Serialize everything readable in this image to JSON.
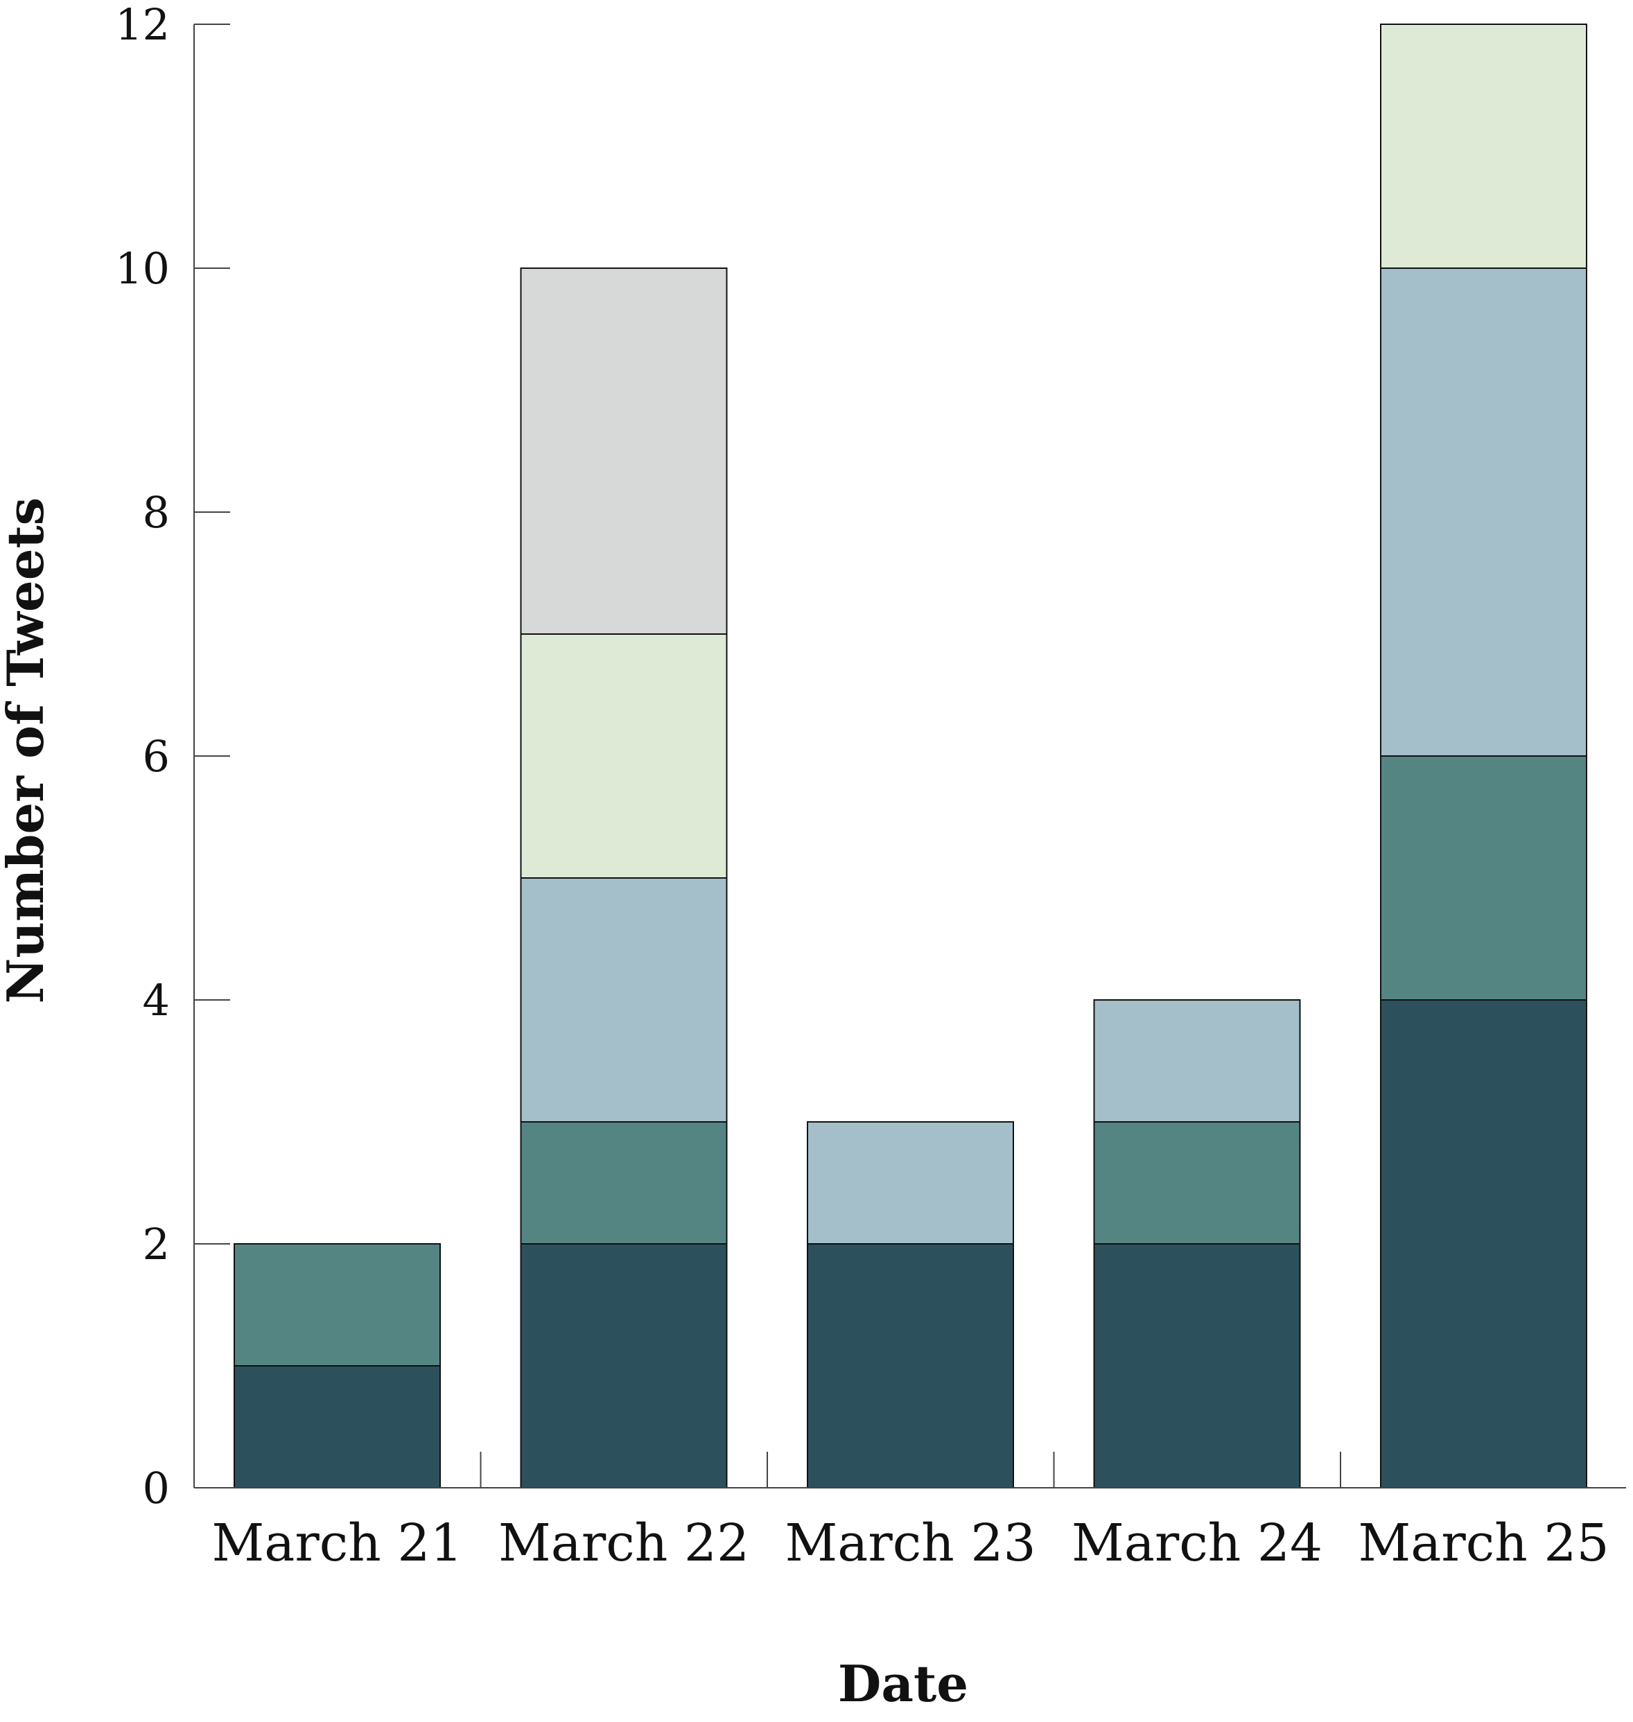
{
  "chart_data": {
    "type": "bar",
    "stacked": true,
    "title": "",
    "xlabel": "Date",
    "ylabel": "Number of Tweets",
    "categories": [
      "March 21",
      "March 22",
      "March 23",
      "March 24",
      "March 25"
    ],
    "ylim": [
      0,
      12
    ],
    "yticks": [
      0,
      2,
      4,
      6,
      8,
      10,
      12
    ],
    "grid": false,
    "series": [
      {
        "values": [
          1,
          2,
          2,
          2,
          4
        ],
        "color": "#2d515c"
      },
      {
        "values": [
          1,
          1,
          0,
          1,
          2
        ],
        "color": "#558583"
      },
      {
        "values": [
          0,
          2,
          1,
          1,
          4
        ],
        "color": "#a4bfca"
      },
      {
        "values": [
          0,
          2,
          0,
          0,
          2
        ],
        "color": "#deead6"
      },
      {
        "values": [
          0,
          3,
          0,
          0,
          0
        ],
        "color": "#d7d9d9"
      }
    ]
  }
}
